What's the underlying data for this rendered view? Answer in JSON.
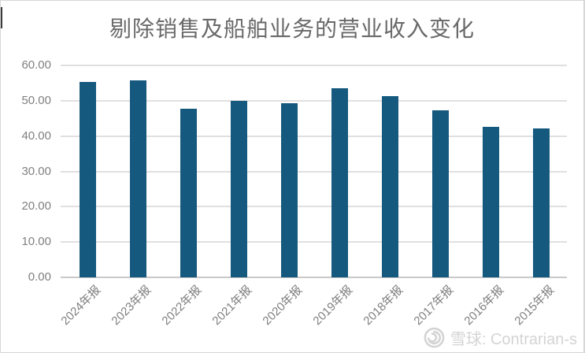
{
  "chart_data": {
    "type": "bar",
    "title": "剔除销售及船舶业务的营业收入变化",
    "categories": [
      "2024年报",
      "2023年报",
      "2022年报",
      "2021年报",
      "2020年报",
      "2019年报",
      "2018年报",
      "2017年报",
      "2016年报",
      "2015年报"
    ],
    "values": [
      55.3,
      55.7,
      47.7,
      50.0,
      49.3,
      53.6,
      51.2,
      47.2,
      42.6,
      42.1
    ],
    "xlabel": "",
    "ylabel": "",
    "ylim": [
      0,
      60
    ],
    "yticks": [
      60,
      50,
      40,
      30,
      20,
      10,
      0
    ],
    "ytick_labels": [
      "60.00",
      "50.00",
      "40.00",
      "30.00",
      "20.00",
      "10.00",
      "0.00"
    ],
    "grid": true,
    "legend": "none",
    "bar_color": "#16597e",
    "title_position": "top-center",
    "xtick_rotation_deg": 45
  },
  "watermark": {
    "icon": "xueqiu-snowball-icon",
    "text": "雪球: Contrarian-s"
  },
  "colors": {
    "bar": "#16597e",
    "title": "#696969",
    "tick_label": "#7f7f7f",
    "gridline": "#e0e0e0",
    "axis_line": "#c9c9c9",
    "watermark": "#d4d4d4",
    "page_border": "#d6d6d6"
  }
}
